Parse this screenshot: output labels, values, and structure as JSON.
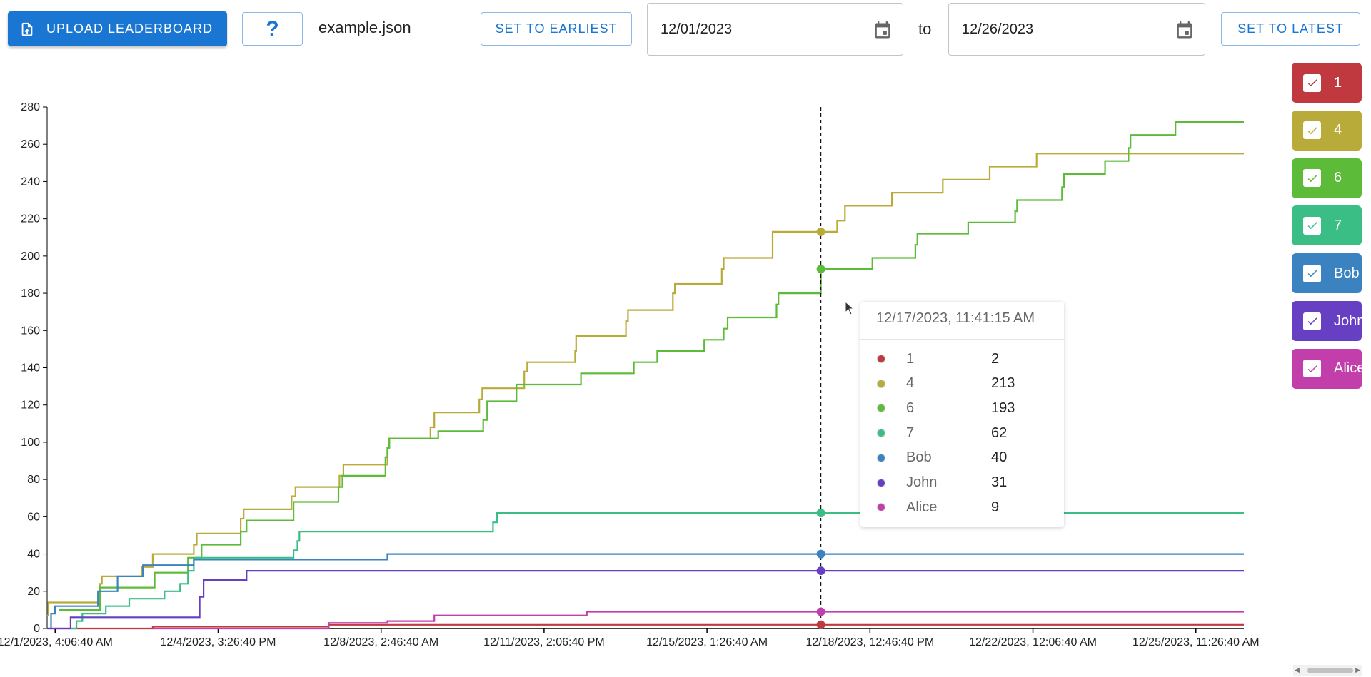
{
  "toolbar": {
    "upload_label": "UPLOAD LEADERBOARD",
    "help_label": "?",
    "filename": "example.json",
    "set_earliest_label": "SET TO EARLIEST",
    "start_date": "12/01/2023",
    "to_label": "to",
    "end_date": "12/26/2023",
    "set_latest_label": "SET TO LATEST"
  },
  "legend": [
    {
      "label": "1",
      "color": "#c0393f",
      "checked": true
    },
    {
      "label": "4",
      "color": "#b9ab3a",
      "checked": true
    },
    {
      "label": "6",
      "color": "#5dbb3a",
      "checked": true
    },
    {
      "label": "7",
      "color": "#3bbd86",
      "checked": true
    },
    {
      "label": "Bob",
      "color": "#3a83c0",
      "checked": true
    },
    {
      "label": "John",
      "color": "#663fc2",
      "checked": true
    },
    {
      "label": "Alice",
      "color": "#c23eab",
      "checked": true
    }
  ],
  "tooltip": {
    "title": "12/17/2023, 11:41:15 AM",
    "rows": [
      {
        "name": "1",
        "value": "2",
        "color": "#c0393f"
      },
      {
        "name": "4",
        "value": "213",
        "color": "#b9ab3a"
      },
      {
        "name": "6",
        "value": "193",
        "color": "#5dbb3a"
      },
      {
        "name": "7",
        "value": "62",
        "color": "#3bbd86"
      },
      {
        "name": "Bob",
        "value": "40",
        "color": "#3a83c0"
      },
      {
        "name": "John",
        "value": "31",
        "color": "#663fc2"
      },
      {
        "name": "Alice",
        "value": "9",
        "color": "#c23eab"
      }
    ]
  },
  "chart_data": {
    "type": "line",
    "step": true,
    "ylim": [
      0,
      280
    ],
    "yticks": [
      0,
      20,
      40,
      60,
      80,
      100,
      120,
      140,
      160,
      180,
      200,
      220,
      240,
      260,
      280
    ],
    "xlim": [
      "2023-12-01T00:00:00",
      "2023-12-26T12:00:00"
    ],
    "xtick_labels": [
      "12/1/2023, 4:06:40 AM",
      "12/4/2023, 3:26:40 PM",
      "12/8/2023, 2:46:40 AM",
      "12/11/2023, 2:06:40 PM",
      "12/15/2023, 1:26:40 AM",
      "12/18/2023, 12:46:40 PM",
      "12/22/2023, 12:06:40 AM",
      "12/25/2023, 11:26:40 AM"
    ],
    "xtick_values": [
      "2023-12-01T04:06:40",
      "2023-12-04T15:26:40",
      "2023-12-08T02:46:40",
      "2023-12-11T14:06:40",
      "2023-12-15T01:26:40",
      "2023-12-18T12:46:40",
      "2023-12-22T00:06:40",
      "2023-12-25T11:26:40"
    ],
    "hover_time": "2023-12-17T11:41:15",
    "series": [
      {
        "name": "1",
        "color": "#c0393f",
        "points": [
          [
            "2023-12-01T03:00:00",
            0
          ],
          [
            "2023-12-03T06:00:00",
            1
          ],
          [
            "2023-12-07T00:00:00",
            2
          ],
          [
            "2023-12-26T12:00:00",
            2
          ]
        ]
      },
      {
        "name": "4",
        "color": "#b9ab3a",
        "points": [
          [
            "2023-12-01T00:00:00",
            7
          ],
          [
            "2023-12-01T00:40:00",
            14
          ],
          [
            "2023-12-02T03:00:00",
            24
          ],
          [
            "2023-12-02T04:00:00",
            28
          ],
          [
            "2023-12-03T00:30:00",
            33
          ],
          [
            "2023-12-03T06:00:00",
            40
          ],
          [
            "2023-12-04T03:00:00",
            45
          ],
          [
            "2023-12-04T04:30:00",
            51
          ],
          [
            "2023-12-05T03:00:00",
            59
          ],
          [
            "2023-12-05T04:30:00",
            64
          ],
          [
            "2023-12-06T05:00:00",
            71
          ],
          [
            "2023-12-06T07:00:00",
            76
          ],
          [
            "2023-12-07T05:30:00",
            82
          ],
          [
            "2023-12-07T07:30:00",
            88
          ],
          [
            "2023-12-08T06:00:00",
            97
          ],
          [
            "2023-12-08T07:00:00",
            102
          ],
          [
            "2023-12-09T04:00:00",
            108
          ],
          [
            "2023-12-09T06:00:00",
            116
          ],
          [
            "2023-12-10T05:00:00",
            123
          ],
          [
            "2023-12-10T06:30:00",
            129
          ],
          [
            "2023-12-11T04:00:00",
            138
          ],
          [
            "2023-12-11T05:30:00",
            143
          ],
          [
            "2023-12-12T06:00:00",
            149
          ],
          [
            "2023-12-12T06:30:00",
            157
          ],
          [
            "2023-12-13T08:00:00",
            165
          ],
          [
            "2023-12-13T09:00:00",
            171
          ],
          [
            "2023-12-14T08:00:00",
            180
          ],
          [
            "2023-12-14T09:00:00",
            185
          ],
          [
            "2023-12-15T09:00:00",
            193
          ],
          [
            "2023-12-15T10:00:00",
            199
          ],
          [
            "2023-12-16T11:00:00",
            213
          ],
          [
            "2023-12-17T20:00:00",
            219
          ],
          [
            "2023-12-18T00:00:00",
            227
          ],
          [
            "2023-12-19T00:00:00",
            234
          ],
          [
            "2023-12-20T02:00:00",
            241
          ],
          [
            "2023-12-21T02:00:00",
            248
          ],
          [
            "2023-12-22T02:00:00",
            255
          ],
          [
            "2023-12-26T12:00:00",
            255
          ]
        ]
      },
      {
        "name": "6",
        "color": "#5dbb3a",
        "points": [
          [
            "2023-12-01T06:00:00",
            10
          ],
          [
            "2023-12-02T03:00:00",
            22
          ],
          [
            "2023-12-03T07:00:00",
            30
          ],
          [
            "2023-12-04T00:00:00",
            38
          ],
          [
            "2023-12-04T07:00:00",
            45
          ],
          [
            "2023-12-05T03:00:00",
            52
          ],
          [
            "2023-12-05T06:00:00",
            58
          ],
          [
            "2023-12-06T06:00:00",
            68
          ],
          [
            "2023-12-07T05:00:00",
            76
          ],
          [
            "2023-12-07T07:00:00",
            82
          ],
          [
            "2023-12-08T05:00:00",
            92
          ],
          [
            "2023-12-08T06:00:00",
            97
          ],
          [
            "2023-12-08T07:00:00",
            102
          ],
          [
            "2023-12-09T08:00:00",
            106
          ],
          [
            "2023-12-10T07:00:00",
            112
          ],
          [
            "2023-12-10T09:00:00",
            122
          ],
          [
            "2023-12-11T00:00:00",
            131
          ],
          [
            "2023-12-12T09:00:00",
            137
          ],
          [
            "2023-12-13T12:00:00",
            143
          ],
          [
            "2023-12-14T00:00:00",
            149
          ],
          [
            "2023-12-15T00:00:00",
            155
          ],
          [
            "2023-12-15T10:00:00",
            161
          ],
          [
            "2023-12-15T12:00:00",
            167
          ],
          [
            "2023-12-16T13:00:00",
            174
          ],
          [
            "2023-12-16T14:00:00",
            180
          ],
          [
            "2023-12-17T11:41:15",
            193
          ],
          [
            "2023-12-18T14:00:00",
            199
          ],
          [
            "2023-12-19T12:00:00",
            206
          ],
          [
            "2023-12-19T13:00:00",
            212
          ],
          [
            "2023-12-20T15:00:00",
            218
          ],
          [
            "2023-12-21T15:00:00",
            224
          ],
          [
            "2023-12-21T16:00:00",
            230
          ],
          [
            "2023-12-22T15:00:00",
            237
          ],
          [
            "2023-12-22T16:00:00",
            244
          ],
          [
            "2023-12-23T13:00:00",
            251
          ],
          [
            "2023-12-24T01:00:00",
            258
          ],
          [
            "2023-12-24T02:00:00",
            265
          ],
          [
            "2023-12-25T01:00:00",
            272
          ],
          [
            "2023-12-26T12:00:00",
            272
          ]
        ]
      },
      {
        "name": "7",
        "color": "#3bbd86",
        "points": [
          [
            "2023-12-01T12:00:00",
            0
          ],
          [
            "2023-12-01T15:00:00",
            4
          ],
          [
            "2023-12-01T18:00:00",
            8
          ],
          [
            "2023-12-02T06:00:00",
            12
          ],
          [
            "2023-12-02T18:00:00",
            16
          ],
          [
            "2023-12-03T12:00:00",
            20
          ],
          [
            "2023-12-03T20:00:00",
            24
          ],
          [
            "2023-12-04T00:00:00",
            31
          ],
          [
            "2023-12-04T03:00:00",
            38
          ],
          [
            "2023-12-06T06:00:00",
            42
          ],
          [
            "2023-12-06T08:00:00",
            47
          ],
          [
            "2023-12-06T09:00:00",
            52
          ],
          [
            "2023-12-10T12:00:00",
            57
          ],
          [
            "2023-12-10T14:00:00",
            62
          ],
          [
            "2023-12-26T12:00:00",
            62
          ]
        ]
      },
      {
        "name": "Bob",
        "color": "#3a83c0",
        "points": [
          [
            "2023-12-01T00:00:00",
            0
          ],
          [
            "2023-12-01T02:00:00",
            8
          ],
          [
            "2023-12-01T04:00:00",
            12
          ],
          [
            "2023-12-02T02:00:00",
            20
          ],
          [
            "2023-12-02T12:00:00",
            28
          ],
          [
            "2023-12-03T01:00:00",
            34
          ],
          [
            "2023-12-04T03:00:00",
            37
          ],
          [
            "2023-12-08T06:00:00",
            40
          ],
          [
            "2023-12-26T12:00:00",
            40
          ]
        ]
      },
      {
        "name": "John",
        "color": "#663fc2",
        "points": [
          [
            "2023-12-01T00:00:00",
            0
          ],
          [
            "2023-12-01T12:00:00",
            6
          ],
          [
            "2023-12-04T06:00:00",
            17
          ],
          [
            "2023-12-04T08:00:00",
            26
          ],
          [
            "2023-12-05T06:00:00",
            31
          ],
          [
            "2023-12-26T12:00:00",
            31
          ]
        ]
      },
      {
        "name": "Alice",
        "color": "#c23eab",
        "points": [
          [
            "2023-12-03T06:00:00",
            0
          ],
          [
            "2023-12-07T00:00:00",
            3
          ],
          [
            "2023-12-08T06:00:00",
            4
          ],
          [
            "2023-12-09T06:00:00",
            7
          ],
          [
            "2023-12-12T12:00:00",
            9
          ],
          [
            "2023-12-26T12:00:00",
            9
          ]
        ]
      }
    ]
  }
}
